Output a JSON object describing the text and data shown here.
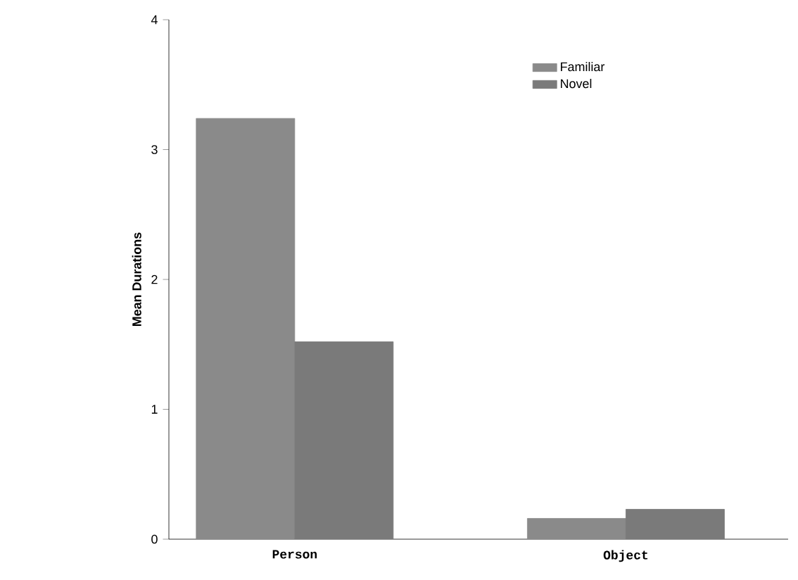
{
  "chart_data": {
    "type": "bar",
    "ylabel": "Mean Durations",
    "categories": [
      "Person",
      "Object"
    ],
    "series": [
      {
        "name": "Familiar",
        "color": "#8a8a8a",
        "values": [
          3.24,
          0.16
        ]
      },
      {
        "name": "Novel",
        "color": "#7a7a7a",
        "values": [
          1.52,
          0.23
        ]
      }
    ],
    "ylim": [
      0,
      4
    ],
    "yticks": [
      0,
      1,
      2,
      3,
      4
    ],
    "legend": "top right"
  }
}
